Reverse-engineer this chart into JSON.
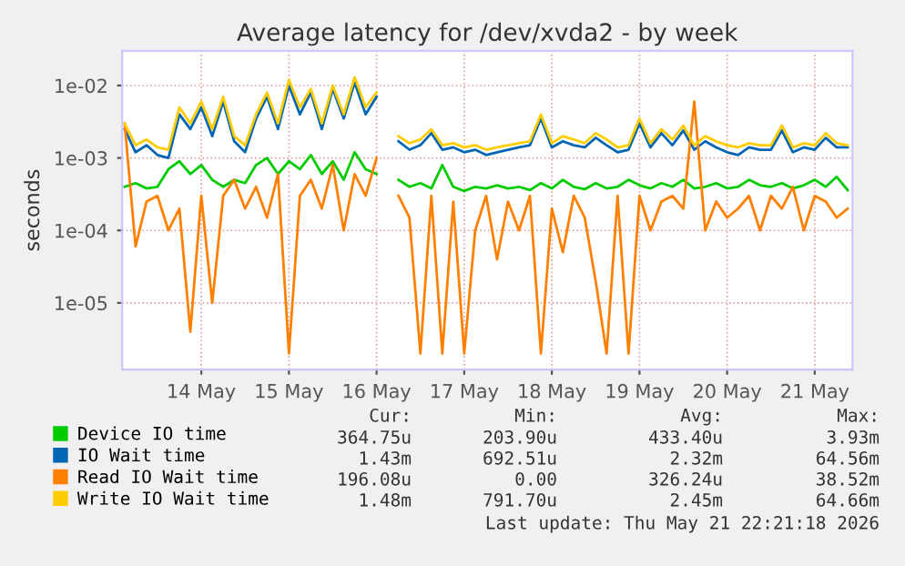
{
  "chart_data": {
    "type": "line",
    "title": "Average latency for /dev/xvda2 - by week",
    "ylabel": "seconds",
    "x": [
      "2026-05-13T15:00",
      "2026-05-13T18:00",
      "2026-05-13T21:00",
      "2026-05-14T00:00",
      "2026-05-14T03:00",
      "2026-05-14T06:00",
      "2026-05-14T09:00",
      "2026-05-14T12:00",
      "2026-05-14T15:00",
      "2026-05-14T18:00",
      "2026-05-14T21:00",
      "2026-05-15T00:00",
      "2026-05-15T03:00",
      "2026-05-15T06:00",
      "2026-05-15T09:00",
      "2026-05-15T12:00",
      "2026-05-15T15:00",
      "2026-05-15T18:00",
      "2026-05-15T21:00",
      "2026-05-16T00:00",
      "2026-05-16T03:00",
      "2026-05-16T06:00",
      "2026-05-16T09:00",
      "2026-05-16T12:00",
      "2026-05-16T15:00",
      "2026-05-16T18:00",
      "2026-05-16T21:00",
      "2026-05-17T00:00",
      "2026-05-17T03:00",
      "2026-05-17T06:00",
      "2026-05-17T09:00",
      "2026-05-17T12:00",
      "2026-05-17T15:00",
      "2026-05-17T18:00",
      "2026-05-17T21:00",
      "2026-05-18T00:00",
      "2026-05-18T03:00",
      "2026-05-18T06:00",
      "2026-05-18T09:00",
      "2026-05-18T12:00",
      "2026-05-18T15:00",
      "2026-05-18T18:00",
      "2026-05-18T21:00",
      "2026-05-19T00:00",
      "2026-05-19T03:00",
      "2026-05-19T06:00",
      "2026-05-19T09:00",
      "2026-05-19T12:00",
      "2026-05-19T15:00",
      "2026-05-19T18:00",
      "2026-05-19T21:00",
      "2026-05-20T00:00",
      "2026-05-20T03:00",
      "2026-05-20T06:00",
      "2026-05-20T09:00",
      "2026-05-20T12:00",
      "2026-05-20T15:00",
      "2026-05-20T18:00",
      "2026-05-20T21:00",
      "2026-05-21T00:00",
      "2026-05-21T03:00",
      "2026-05-21T06:00",
      "2026-05-21T09:00",
      "2026-05-21T12:00",
      "2026-05-21T15:00",
      "2026-05-21T18:00",
      "2026-05-21T21:00"
    ],
    "series": [
      {
        "name": "Device IO time",
        "color": "#00cc00",
        "values": [
          0.0004,
          0.00045,
          0.00038,
          0.0004,
          0.0007,
          0.0009,
          0.0006,
          0.0008,
          0.0005,
          0.0004,
          0.0005,
          0.00045,
          0.0008,
          0.001,
          0.0006,
          0.0009,
          0.0007,
          0.0011,
          0.0006,
          0.0009,
          0.0005,
          0.0012,
          0.0007,
          0.0006,
          null,
          0.0005,
          0.0004,
          0.00045,
          0.00038,
          0.0008,
          0.0004,
          0.00035,
          0.0004,
          0.00038,
          0.00042,
          0.00038,
          0.0004,
          0.00036,
          0.00045,
          0.00038,
          0.0005,
          0.0004,
          0.00037,
          0.00045,
          0.00038,
          0.0004,
          0.0005,
          0.00042,
          0.00038,
          0.00045,
          0.0004,
          0.0005,
          0.00038,
          0.0004,
          0.00045,
          0.00038,
          0.0004,
          0.0005,
          0.00042,
          0.0004,
          0.00045,
          0.00038,
          0.00042,
          0.0005,
          0.0004,
          0.00055,
          0.00036
        ]
      },
      {
        "name": "IO Wait time",
        "color": "#0066b3",
        "values": [
          0.0025,
          0.0012,
          0.0015,
          0.0011,
          0.001,
          0.004,
          0.0025,
          0.005,
          0.002,
          0.006,
          0.0017,
          0.0012,
          0.0035,
          0.007,
          0.0025,
          0.01,
          0.004,
          0.008,
          0.0025,
          0.009,
          0.0035,
          0.011,
          0.004,
          0.007,
          null,
          0.0017,
          0.0013,
          0.0015,
          0.0022,
          0.0013,
          0.0014,
          0.0012,
          0.0013,
          0.0011,
          0.0012,
          0.0013,
          0.0014,
          0.0015,
          0.0035,
          0.0014,
          0.0017,
          0.0015,
          0.0014,
          0.0019,
          0.0015,
          0.0012,
          0.0013,
          0.003,
          0.0014,
          0.0022,
          0.0015,
          0.0024,
          0.0013,
          0.0017,
          0.0014,
          0.0012,
          0.0011,
          0.0014,
          0.0013,
          0.0013,
          0.0024,
          0.0012,
          0.0014,
          0.0013,
          0.0019,
          0.0014,
          0.0014
        ]
      },
      {
        "name": "Read IO Wait time",
        "color": "#ff8000",
        "values": [
          0.003,
          6e-05,
          0.00025,
          0.0003,
          0.0001,
          0.0002,
          4e-06,
          0.0003,
          1e-05,
          0.0003,
          0.0005,
          0.0002,
          0.0004,
          0.00015,
          0.0006,
          2e-06,
          0.0003,
          0.0005,
          0.0002,
          0.0008,
          0.0001,
          0.0006,
          0.0003,
          0.001,
          null,
          0.0003,
          0.00015,
          2e-06,
          0.0003,
          2e-06,
          0.00025,
          2e-06,
          0.0001,
          0.0003,
          4e-05,
          0.00025,
          0.0001,
          0.0003,
          2e-06,
          0.0002,
          5e-05,
          0.0003,
          0.00015,
          2e-05,
          2e-06,
          0.0003,
          2e-06,
          0.0003,
          0.0001,
          0.00025,
          0.0003,
          0.0002,
          0.006,
          0.0001,
          0.00025,
          0.00015,
          0.0002,
          0.0003,
          0.0001,
          0.0003,
          0.0002,
          0.0004,
          0.0001,
          0.0003,
          0.00025,
          0.00015,
          0.0002
        ]
      },
      {
        "name": "Write IO Wait time",
        "color": "#ffcc00",
        "values": [
          0.003,
          0.0015,
          0.0018,
          0.0014,
          0.0013,
          0.005,
          0.003,
          0.006,
          0.0025,
          0.007,
          0.002,
          0.0015,
          0.004,
          0.008,
          0.003,
          0.012,
          0.005,
          0.009,
          0.003,
          0.01,
          0.004,
          0.013,
          0.005,
          0.008,
          null,
          0.002,
          0.0016,
          0.0018,
          0.0025,
          0.0015,
          0.0016,
          0.0014,
          0.0015,
          0.0013,
          0.0014,
          0.0015,
          0.0016,
          0.0017,
          0.004,
          0.0016,
          0.002,
          0.0018,
          0.0016,
          0.0022,
          0.0018,
          0.0014,
          0.0015,
          0.0035,
          0.0016,
          0.0025,
          0.0018,
          0.0028,
          0.0015,
          0.002,
          0.0017,
          0.0015,
          0.0014,
          0.0016,
          0.0015,
          0.0015,
          0.0028,
          0.0014,
          0.0016,
          0.0015,
          0.0022,
          0.0016,
          0.0015
        ]
      }
    ],
    "log": "y",
    "ylim": [
      1.2e-06,
      0.03
    ],
    "yticks": [
      {
        "value": 1e-05,
        "label": "1e-05"
      },
      {
        "value": 0.0001,
        "label": "1e-04"
      },
      {
        "value": 0.001,
        "label": "1e-03"
      },
      {
        "value": 0.01,
        "label": "1e-02"
      }
    ],
    "xlim": [
      "2026-05-13T14:20",
      "2026-05-21T22:20"
    ],
    "xticks": [
      {
        "value": "2026-05-14T12:00",
        "label": "14 May"
      },
      {
        "value": "2026-05-15T12:00",
        "label": "15 May"
      },
      {
        "value": "2026-05-16T12:00",
        "label": "16 May"
      },
      {
        "value": "2026-05-17T12:00",
        "label": "17 May"
      },
      {
        "value": "2026-05-18T12:00",
        "label": "18 May"
      },
      {
        "value": "2026-05-19T12:00",
        "label": "19 May"
      },
      {
        "value": "2026-05-20T12:00",
        "label": "20 May"
      },
      {
        "value": "2026-05-21T12:00",
        "label": "21 May"
      }
    ],
    "grid": true,
    "legend": "bottom left",
    "annotations": [
      "Cur:",
      "Min:",
      "Avg:",
      "Max:",
      "364.75u",
      "203.90u",
      "433.40u",
      "3.93m",
      "1.43m",
      "692.51u",
      "2.32m",
      "64.56m",
      "196.08u",
      "0.00",
      "326.24u",
      "38.52m",
      "1.48m",
      "791.70u",
      "2.45m",
      "64.66m",
      "Last update: Thu May 21 22:21:18 2026"
    ]
  }
}
